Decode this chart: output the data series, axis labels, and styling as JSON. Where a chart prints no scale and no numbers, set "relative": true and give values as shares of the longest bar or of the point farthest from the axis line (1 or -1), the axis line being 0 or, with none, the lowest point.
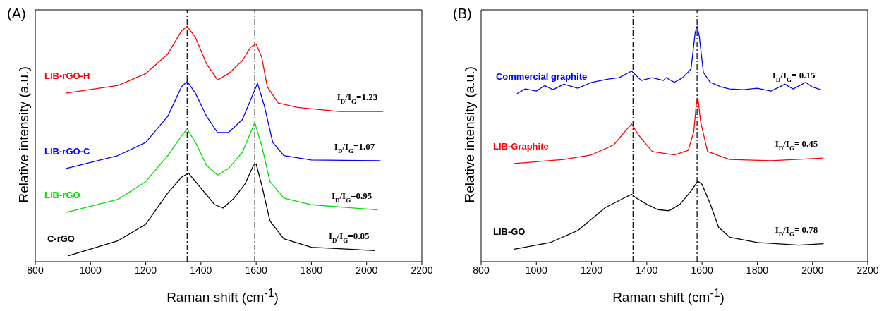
{
  "chart_data": [
    {
      "type": "line",
      "title": "(A)",
      "xlabel": "Raman shift (cm$^{-1}$)",
      "ylabel": "Relative intensity (a.u.)",
      "relative": true,
      "xlim": [
        800,
        2200
      ],
      "xticks": [
        800,
        1000,
        1200,
        1400,
        1600,
        1800,
        2000,
        2200
      ],
      "grid": false,
      "legend": false,
      "marker": "none",
      "line_style": "solid",
      "ref_lines": [
        {
          "axis": "x",
          "value": 1350,
          "line_style": "dashed",
          "color": "#000000"
        },
        {
          "axis": "x",
          "value": 1595,
          "line_style": "dashed",
          "color": "#000000"
        }
      ],
      "series": [
        {
          "name": "LIB-rGO-H",
          "color": "#ff0000",
          "x": [
            910,
            1100,
            1200,
            1280,
            1330,
            1350,
            1380,
            1420,
            1460,
            1500,
            1550,
            1580,
            1600,
            1620,
            1640,
            1680,
            1750,
            1900,
            2060
          ],
          "values": [
            0.716,
            0.749,
            0.799,
            0.883,
            0.981,
            1.0,
            0.953,
            0.841,
            0.772,
            0.799,
            0.855,
            0.911,
            0.925,
            0.869,
            0.744,
            0.674,
            0.655,
            0.638,
            0.638
          ]
        },
        {
          "name": "LIB-rGO-C",
          "color": "#0000ff",
          "x": [
            910,
            1100,
            1200,
            1280,
            1330,
            1350,
            1380,
            1420,
            1460,
            1500,
            1550,
            1580,
            1605,
            1630,
            1660,
            1700,
            1800,
            2050
          ],
          "values": [
            0.395,
            0.451,
            0.507,
            0.618,
            0.744,
            0.766,
            0.716,
            0.618,
            0.549,
            0.549,
            0.604,
            0.688,
            0.758,
            0.66,
            0.507,
            0.451,
            0.432,
            0.429
          ]
        },
        {
          "name": "LIB-rGO",
          "color": "#00e000",
          "x": [
            910,
            1100,
            1200,
            1280,
            1330,
            1350,
            1380,
            1420,
            1460,
            1500,
            1550,
            1580,
            1595,
            1620,
            1650,
            1700,
            1800,
            2040
          ],
          "values": [
            0.209,
            0.265,
            0.34,
            0.451,
            0.535,
            0.563,
            0.507,
            0.409,
            0.368,
            0.396,
            0.465,
            0.549,
            0.591,
            0.493,
            0.34,
            0.27,
            0.242,
            0.22
          ]
        },
        {
          "name": "C-rGO",
          "color": "#000000",
          "x": [
            920,
            1100,
            1200,
            1280,
            1330,
            1355,
            1400,
            1450,
            1480,
            1520,
            1560,
            1590,
            1600,
            1620,
            1650,
            1700,
            1800,
            2030
          ],
          "values": [
            0.025,
            0.089,
            0.159,
            0.292,
            0.359,
            0.376,
            0.312,
            0.242,
            0.228,
            0.27,
            0.331,
            0.409,
            0.415,
            0.326,
            0.173,
            0.097,
            0.061,
            0.047
          ]
        }
      ],
      "annotations": [
        "I$_{D}$/I$_{G}$=1.23",
        "I$_{D}$/I$_{G}$=1.07",
        "I$_{D}$/I$_{G}$=0.95",
        "I$_{D}$/I$_{G}$=0.85"
      ]
    },
    {
      "type": "line",
      "title": "(B)",
      "xlabel": "Raman shift (cm$^{-1}$)",
      "ylabel": "Relative intensity (a.u.)",
      "relative": true,
      "xlim": [
        800,
        2200
      ],
      "xticks": [
        800,
        1000,
        1200,
        1400,
        1600,
        1800,
        2000,
        2200
      ],
      "grid": false,
      "legend": false,
      "marker": "none",
      "line_style": "solid",
      "ref_lines": [
        {
          "axis": "x",
          "value": 1350,
          "line_style": "dashed",
          "color": "#000000"
        },
        {
          "axis": "x",
          "value": 1582,
          "line_style": "dashed",
          "color": "#000000"
        }
      ],
      "series": [
        {
          "name": "Commercial graphite",
          "color": "#0000ff",
          "x": [
            930,
            960,
            1000,
            1030,
            1060,
            1100,
            1150,
            1200,
            1260,
            1300,
            1345,
            1380,
            1420,
            1460,
            1470,
            1500,
            1530,
            1560,
            1575,
            1582,
            1590,
            1605,
            1630,
            1670,
            1700,
            1750,
            1800,
            1850,
            1900,
            1930,
            1975,
            2000,
            2030
          ],
          "values": [
            0.714,
            0.734,
            0.725,
            0.748,
            0.731,
            0.754,
            0.737,
            0.762,
            0.776,
            0.782,
            0.81,
            0.77,
            0.782,
            0.77,
            0.782,
            0.762,
            0.782,
            0.818,
            0.972,
            1.0,
            0.958,
            0.804,
            0.762,
            0.742,
            0.734,
            0.731,
            0.737,
            0.725,
            0.754,
            0.734,
            0.762,
            0.742,
            0.731
          ]
        },
        {
          "name": "LIB-Graphite",
          "color": "#ff0000",
          "x": [
            920,
            1100,
            1200,
            1280,
            1320,
            1345,
            1370,
            1420,
            1500,
            1550,
            1570,
            1580,
            1585,
            1595,
            1620,
            1700,
            1850,
            2040
          ],
          "values": [
            0.417,
            0.434,
            0.454,
            0.496,
            0.552,
            0.585,
            0.538,
            0.468,
            0.454,
            0.473,
            0.552,
            0.678,
            0.697,
            0.594,
            0.468,
            0.434,
            0.429,
            0.44
          ]
        },
        {
          "name": "LIB-GO",
          "color": "#000000",
          "x": [
            920,
            1050,
            1150,
            1250,
            1320,
            1345,
            1360,
            1400,
            1440,
            1480,
            1520,
            1560,
            1585,
            1600,
            1630,
            1660,
            1700,
            1800,
            1950,
            2040
          ],
          "values": [
            0.053,
            0.081,
            0.132,
            0.23,
            0.272,
            0.286,
            0.272,
            0.244,
            0.221,
            0.216,
            0.244,
            0.3,
            0.342,
            0.328,
            0.244,
            0.146,
            0.104,
            0.081,
            0.07,
            0.076
          ]
        }
      ],
      "annotations": [
        "I$_{D}$/I$_{G}$= 0.15",
        "I$_{D}$/I$_{G}$= 0.45",
        "I$_{D}$/I$_{G}$= 0.78"
      ]
    }
  ]
}
